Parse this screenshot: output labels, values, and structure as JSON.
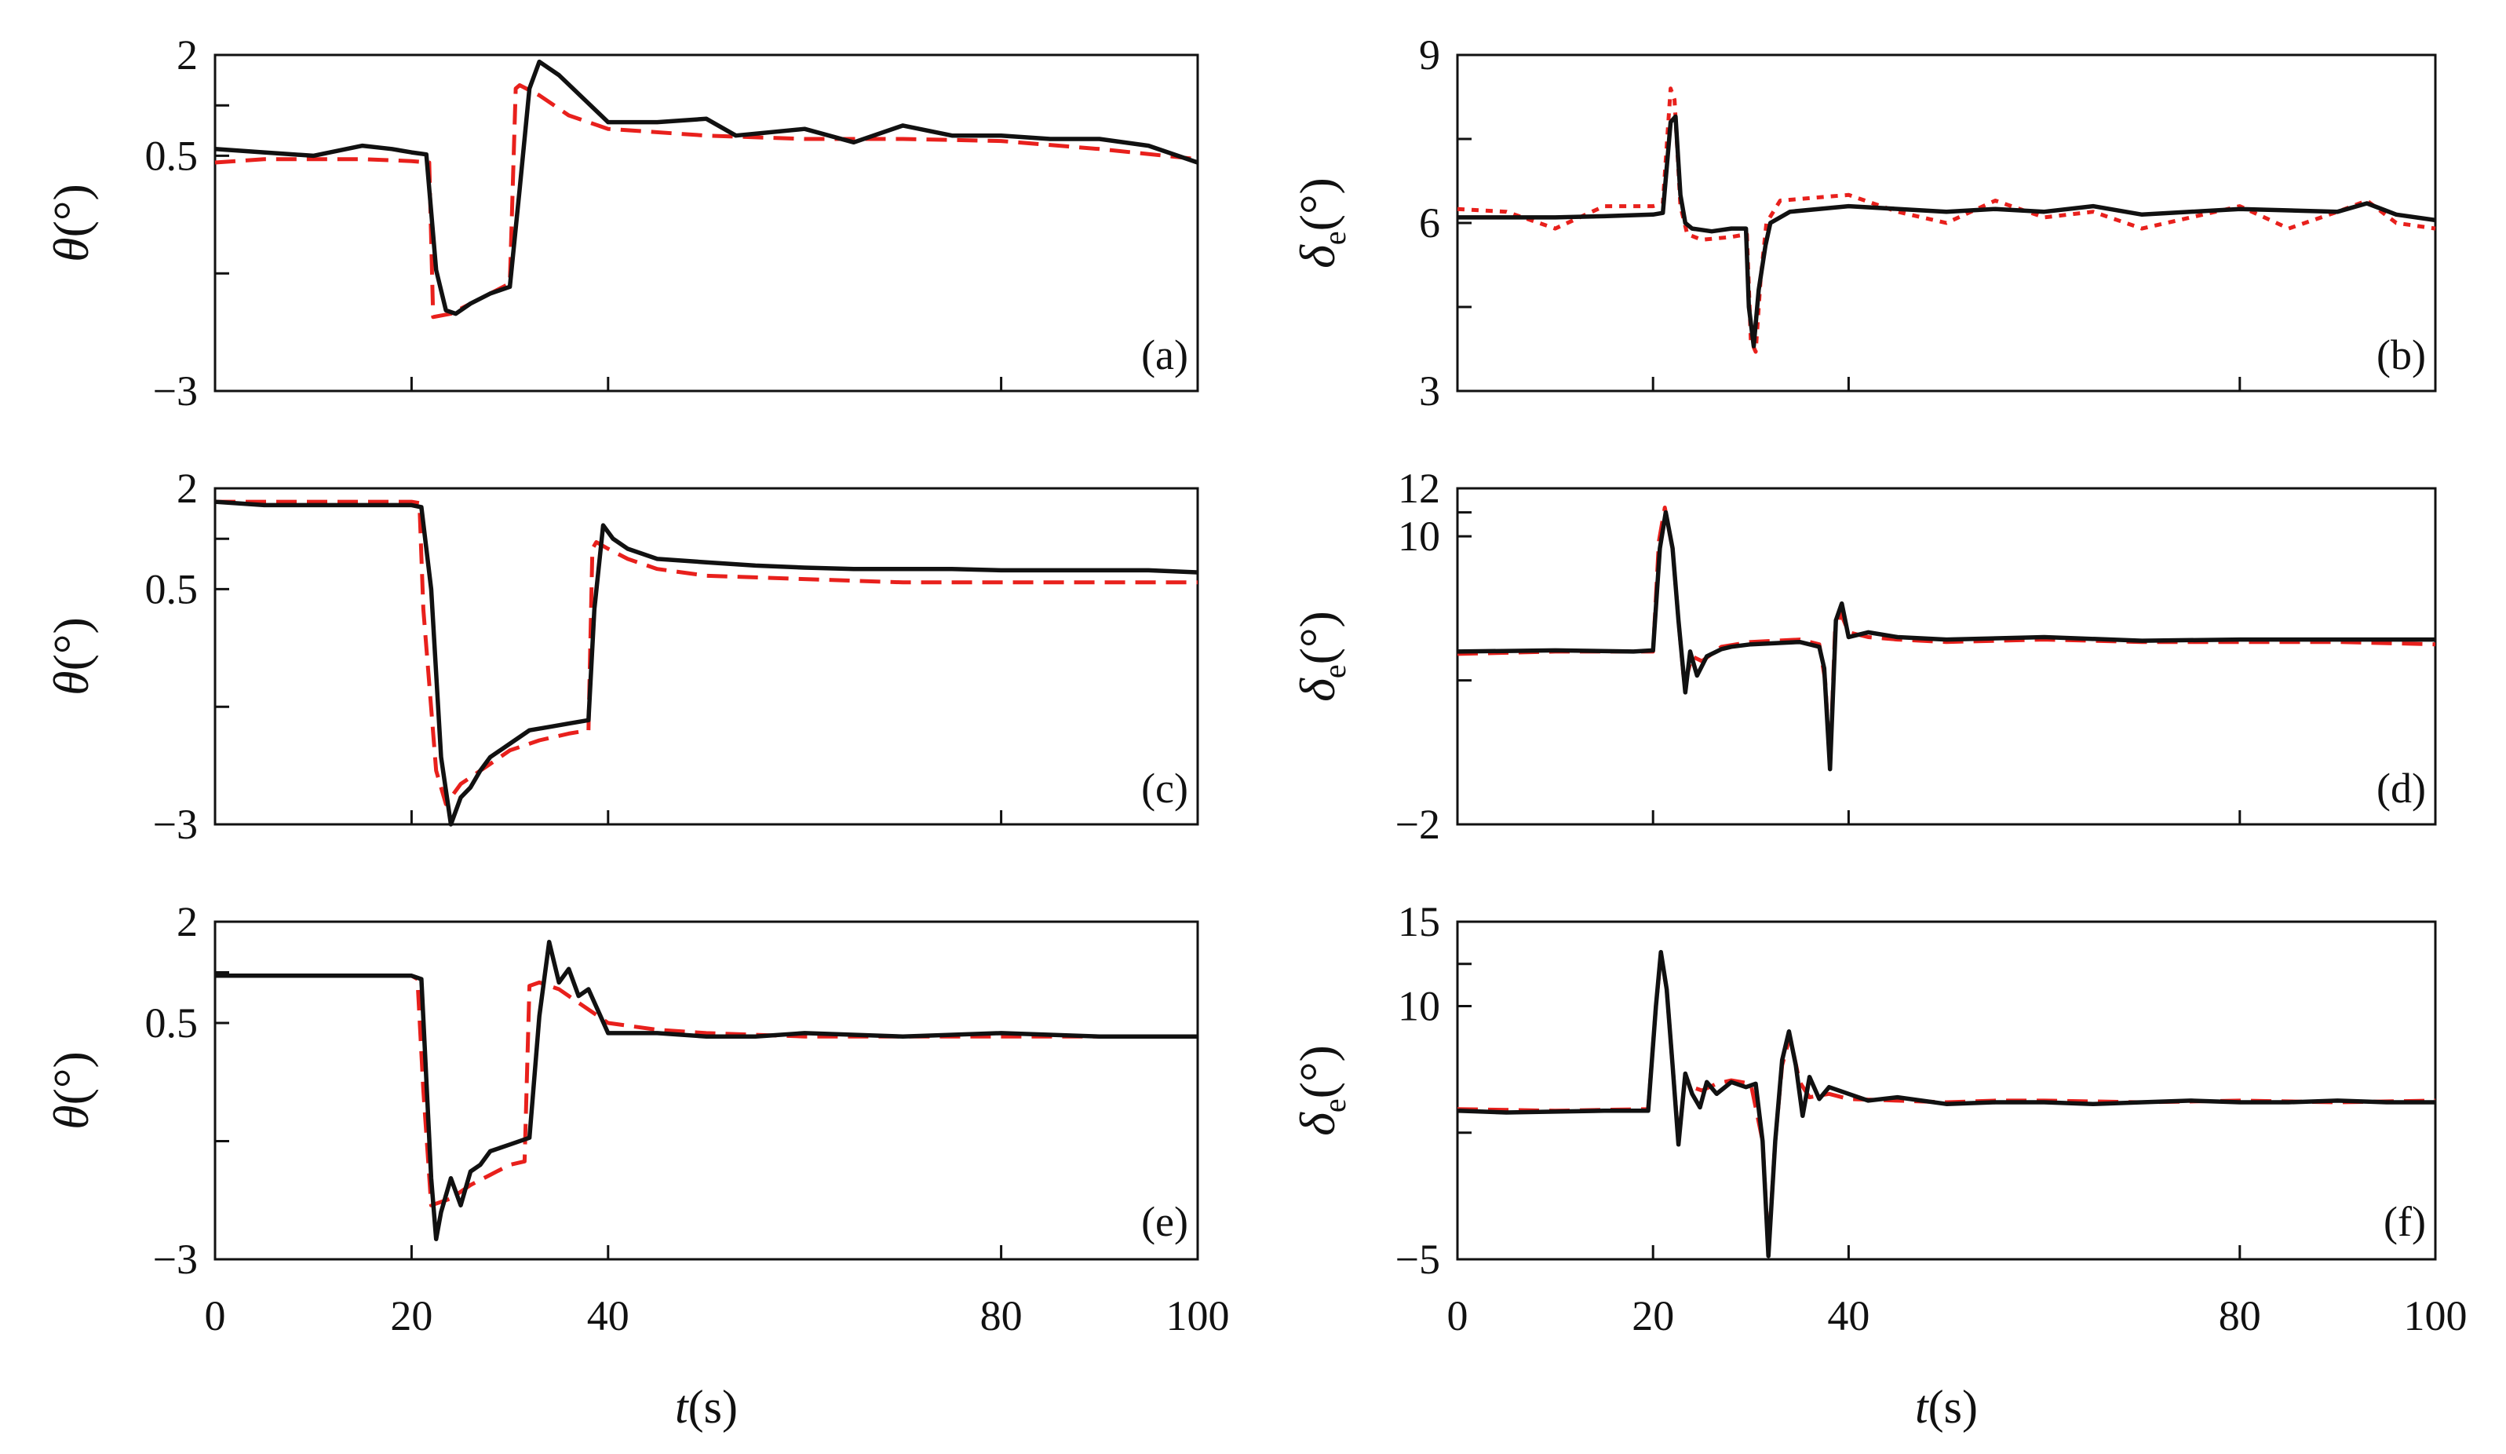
{
  "figure": {
    "xlabel_italic": "t",
    "xlabel_unit": "(s)",
    "xticks": [
      0,
      20,
      40,
      80,
      100
    ],
    "colors": {
      "actual": "#111111",
      "reference": "#e8201c"
    }
  },
  "chart_data": [
    {
      "id": "a",
      "type": "line",
      "panel_label": "(a)",
      "ylabel_symbol": "θ",
      "ylabel_unit": "(°)",
      "xlim": [
        0,
        100
      ],
      "ylim": [
        -3,
        2
      ],
      "yticks": [
        2,
        0.5,
        -3
      ],
      "ytick_labels": [
        "2",
        "0.5",
        "−3"
      ],
      "series": [
        {
          "name": "actual",
          "style": "solid",
          "x": [
            0,
            5,
            10,
            15,
            18,
            20,
            21.5,
            22.5,
            23.5,
            24.5,
            26,
            28,
            30,
            31,
            32,
            33,
            35,
            40,
            45,
            50,
            53,
            60,
            65,
            70,
            75,
            80,
            85,
            90,
            95,
            100
          ],
          "y": [
            0.6,
            0.55,
            0.5,
            0.65,
            0.6,
            0.55,
            0.52,
            -1.2,
            -1.8,
            -1.85,
            -1.7,
            -1.55,
            -1.45,
            0.0,
            1.5,
            1.9,
            1.7,
            1.0,
            1.0,
            1.05,
            0.8,
            0.9,
            0.7,
            0.95,
            0.8,
            0.8,
            0.75,
            0.75,
            0.65,
            0.4
          ]
        },
        {
          "name": "reference",
          "style": "dashed",
          "x": [
            0,
            5,
            10,
            15,
            20,
            21.8,
            22.2,
            24,
            26,
            28,
            30,
            30.6,
            31,
            33,
            36,
            40,
            50,
            60,
            70,
            80,
            90,
            100
          ],
          "y": [
            0.4,
            0.45,
            0.45,
            0.45,
            0.42,
            0.4,
            -1.9,
            -1.85,
            -1.7,
            -1.55,
            -1.4,
            1.5,
            1.55,
            1.4,
            1.1,
            0.9,
            0.8,
            0.75,
            0.75,
            0.72,
            0.6,
            0.45
          ]
        }
      ]
    },
    {
      "id": "b",
      "type": "line",
      "panel_label": "(b)",
      "ylabel_symbol": "δ",
      "ylabel_sub": "e",
      "ylabel_unit": "(°)",
      "xlim": [
        0,
        100
      ],
      "ylim": [
        3,
        9
      ],
      "yticks": [
        9,
        6,
        3
      ],
      "ytick_labels": [
        "9",
        "6",
        "3"
      ],
      "series": [
        {
          "name": "actual",
          "style": "solid",
          "x": [
            0,
            10,
            15,
            20,
            21,
            21.8,
            22.3,
            22.8,
            23.3,
            24,
            26,
            28,
            29.5,
            29.8,
            30.3,
            30.8,
            31.5,
            32,
            34,
            40,
            50,
            55,
            60,
            65,
            70,
            80,
            90,
            93,
            96,
            100
          ],
          "y": [
            6.1,
            6.1,
            6.12,
            6.15,
            6.18,
            7.8,
            7.9,
            6.5,
            6.0,
            5.9,
            5.85,
            5.9,
            5.9,
            4.5,
            3.8,
            4.8,
            5.6,
            6.0,
            6.2,
            6.3,
            6.2,
            6.25,
            6.2,
            6.3,
            6.15,
            6.25,
            6.2,
            6.35,
            6.15,
            6.05
          ]
        },
        {
          "name": "reference",
          "style": "dotted",
          "x": [
            0,
            5,
            10,
            15,
            20,
            21,
            21.8,
            22.2,
            22.8,
            23.5,
            25,
            28,
            29.6,
            30,
            30.5,
            31,
            31.6,
            33,
            40,
            45,
            50,
            55,
            60,
            65,
            70,
            75,
            80,
            85,
            90,
            93,
            96,
            100
          ],
          "y": [
            6.25,
            6.2,
            5.9,
            6.3,
            6.3,
            6.35,
            8.4,
            8.2,
            6.3,
            5.8,
            5.7,
            5.75,
            5.8,
            3.9,
            3.7,
            5.0,
            6.0,
            6.4,
            6.5,
            6.2,
            6.0,
            6.4,
            6.1,
            6.2,
            5.9,
            6.1,
            6.3,
            5.9,
            6.2,
            6.4,
            6.0,
            5.9
          ]
        }
      ]
    },
    {
      "id": "c",
      "type": "line",
      "panel_label": "(c)",
      "ylabel_symbol": "θ",
      "ylabel_unit": "(°)",
      "xlim": [
        0,
        100
      ],
      "ylim": [
        -3,
        2
      ],
      "yticks": [
        2,
        0.5,
        -3
      ],
      "ytick_labels": [
        "2",
        "0.5",
        "−3"
      ],
      "series": [
        {
          "name": "actual",
          "style": "solid",
          "x": [
            0,
            5,
            10,
            15,
            20,
            21,
            22,
            23,
            24,
            25,
            26,
            27,
            28,
            30,
            32,
            34,
            36,
            38,
            38.6,
            39.5,
            40.5,
            42,
            45,
            50,
            55,
            60,
            65,
            70,
            75,
            80,
            85,
            90,
            95,
            100
          ],
          "y": [
            1.8,
            1.75,
            1.75,
            1.75,
            1.75,
            1.72,
            0.5,
            -2.0,
            -3.0,
            -2.6,
            -2.45,
            -2.2,
            -2.0,
            -1.8,
            -1.6,
            -1.55,
            -1.5,
            -1.45,
            0.2,
            1.45,
            1.25,
            1.1,
            0.95,
            0.9,
            0.85,
            0.82,
            0.8,
            0.8,
            0.8,
            0.78,
            0.78,
            0.78,
            0.78,
            0.75
          ]
        },
        {
          "name": "reference",
          "style": "dashed",
          "x": [
            0,
            5,
            10,
            15,
            20,
            20.8,
            21.2,
            22.5,
            23.5,
            25,
            28,
            30,
            33,
            36,
            38,
            38.4,
            38.8,
            40,
            42,
            45,
            50,
            60,
            70,
            80,
            90,
            100
          ],
          "y": [
            1.8,
            1.8,
            1.8,
            1.8,
            1.8,
            1.78,
            0.2,
            -2.2,
            -2.7,
            -2.4,
            -2.1,
            -1.9,
            -1.75,
            -1.65,
            -1.6,
            1.1,
            1.2,
            1.1,
            0.95,
            0.8,
            0.7,
            0.65,
            0.6,
            0.6,
            0.6,
            0.6
          ]
        }
      ]
    },
    {
      "id": "d",
      "type": "line",
      "panel_label": "(d)",
      "ylabel_symbol": "δ",
      "ylabel_sub": "e",
      "ylabel_unit": "(°)",
      "xlim": [
        0,
        100
      ],
      "ylim": [
        -2,
        12
      ],
      "yticks": [
        12,
        10,
        -2
      ],
      "ytick_labels": [
        "12",
        "10",
        "−2"
      ],
      "series": [
        {
          "name": "actual",
          "style": "solid",
          "x": [
            0,
            10,
            18,
            20,
            20.7,
            21.3,
            22,
            22.6,
            23.3,
            23.8,
            24.5,
            25.5,
            27,
            28,
            30,
            35,
            37,
            37.5,
            38.1,
            38.7,
            39.3,
            40,
            42,
            45,
            50,
            60,
            70,
            80,
            90,
            100
          ],
          "y": [
            5.2,
            5.25,
            5.2,
            5.25,
            9.5,
            11.0,
            9.5,
            6.5,
            3.5,
            5.2,
            4.2,
            5.0,
            5.3,
            5.4,
            5.5,
            5.6,
            5.4,
            4.5,
            0.3,
            6.5,
            7.2,
            5.8,
            6.0,
            5.8,
            5.7,
            5.8,
            5.65,
            5.7,
            5.7,
            5.7
          ]
        },
        {
          "name": "reference",
          "style": "dashed",
          "x": [
            0,
            10,
            18,
            20,
            20.6,
            21.2,
            22,
            22.6,
            23.2,
            24,
            25,
            27,
            30,
            35,
            37,
            37.6,
            38.1,
            38.6,
            39.2,
            40,
            42,
            45,
            50,
            60,
            70,
            80,
            90,
            100
          ],
          "y": [
            5.1,
            5.2,
            5.2,
            5.2,
            9.8,
            11.2,
            9.5,
            6.5,
            3.8,
            5.0,
            4.8,
            5.4,
            5.6,
            5.7,
            5.5,
            4.0,
            0.5,
            6.0,
            6.8,
            6.0,
            5.8,
            5.7,
            5.6,
            5.7,
            5.6,
            5.6,
            5.6,
            5.5
          ]
        }
      ]
    },
    {
      "id": "e",
      "type": "line",
      "panel_label": "(e)",
      "ylabel_symbol": "θ",
      "ylabel_unit": "(°)",
      "xlim": [
        0,
        100
      ],
      "ylim": [
        -3,
        2
      ],
      "yticks": [
        2,
        0.5,
        -3
      ],
      "ytick_labels": [
        "2",
        "0.5",
        "−3"
      ],
      "series": [
        {
          "name": "actual",
          "style": "solid",
          "x": [
            0,
            5,
            10,
            15,
            20,
            21,
            22,
            22.5,
            23,
            24,
            25,
            26,
            27,
            28,
            30,
            32,
            33,
            34,
            35,
            36,
            37,
            38,
            40,
            45,
            50,
            55,
            60,
            70,
            80,
            90,
            100
          ],
          "y": [
            1.2,
            1.2,
            1.2,
            1.2,
            1.2,
            1.15,
            -1.8,
            -2.7,
            -2.3,
            -1.8,
            -2.2,
            -1.7,
            -1.6,
            -1.4,
            -1.3,
            -1.2,
            0.6,
            1.7,
            1.1,
            1.3,
            0.9,
            1.0,
            0.35,
            0.35,
            0.3,
            0.3,
            0.35,
            0.3,
            0.35,
            0.3,
            0.3
          ]
        },
        {
          "name": "reference",
          "style": "dashed",
          "x": [
            0,
            10,
            20,
            20.6,
            21.2,
            22,
            24,
            26,
            28,
            30,
            31.5,
            32,
            33,
            35,
            37,
            40,
            45,
            50,
            60,
            70,
            80,
            90,
            100
          ],
          "y": [
            1.2,
            1.2,
            1.2,
            1.15,
            -0.5,
            -2.2,
            -2.1,
            -1.9,
            -1.75,
            -1.6,
            -1.55,
            1.05,
            1.1,
            1.0,
            0.8,
            0.5,
            0.4,
            0.35,
            0.3,
            0.3,
            0.3,
            0.3,
            0.3
          ]
        }
      ]
    },
    {
      "id": "f",
      "type": "line",
      "panel_label": "(f)",
      "ylabel_symbol": "δ",
      "ylabel_sub": "e",
      "ylabel_unit": "(°)",
      "xlim": [
        0,
        100
      ],
      "ylim": [
        -5,
        15
      ],
      "yticks": [
        15,
        10,
        -5
      ],
      "ytick_labels": [
        "15",
        "10",
        "−5"
      ],
      "series": [
        {
          "name": "actual",
          "style": "solid",
          "x": [
            0,
            5,
            10,
            15,
            19.5,
            20.3,
            20.8,
            21.4,
            22,
            22.6,
            23.3,
            24,
            24.8,
            25.5,
            26.5,
            28,
            29.5,
            30.5,
            31.2,
            31.8,
            32.5,
            33.2,
            33.9,
            34.6,
            35.3,
            36,
            37,
            38,
            40,
            42,
            45,
            50,
            55,
            60,
            65,
            70,
            75,
            80,
            85,
            90,
            95,
            100
          ],
          "y": [
            3.8,
            3.7,
            3.75,
            3.8,
            3.8,
            10.0,
            13.2,
            11.0,
            6.5,
            1.8,
            6.0,
            4.8,
            4.0,
            5.5,
            4.8,
            5.5,
            5.2,
            5.4,
            2.0,
            -4.8,
            2.0,
            6.8,
            8.5,
            6.5,
            3.5,
            5.8,
            4.5,
            5.2,
            4.8,
            4.4,
            4.6,
            4.2,
            4.3,
            4.3,
            4.2,
            4.3,
            4.4,
            4.3,
            4.3,
            4.4,
            4.3,
            4.3
          ]
        },
        {
          "name": "reference",
          "style": "dashed",
          "x": [
            0,
            10,
            19.5,
            20.3,
            20.8,
            21.4,
            22,
            22.6,
            23.3,
            24,
            25,
            26.5,
            28,
            30,
            31.2,
            31.8,
            32.5,
            33.2,
            34,
            35,
            36,
            38,
            40,
            45,
            50,
            55,
            60,
            70,
            80,
            90,
            100
          ],
          "y": [
            3.9,
            3.8,
            3.9,
            10.0,
            13.0,
            11.0,
            6.5,
            2.0,
            5.8,
            5.2,
            5.0,
            5.4,
            5.6,
            5.4,
            2.0,
            -4.5,
            2.0,
            6.5,
            8.2,
            5.5,
            4.6,
            4.8,
            4.5,
            4.4,
            4.3,
            4.4,
            4.4,
            4.3,
            4.4,
            4.3,
            4.4
          ]
        }
      ]
    }
  ]
}
